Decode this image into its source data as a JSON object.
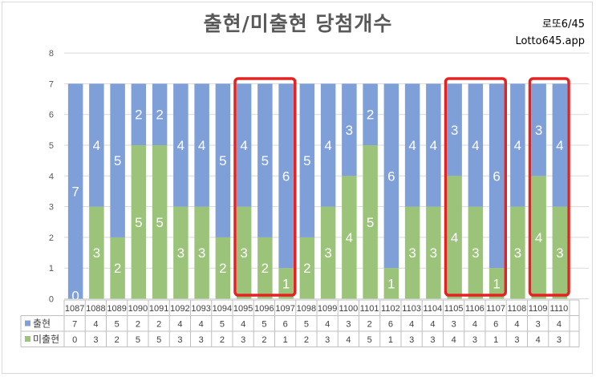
{
  "title": "출현/미출현 당첨개수",
  "brand": {
    "line1": "로또6/45",
    "line2": "Lotto645.app"
  },
  "colors": {
    "shown": "#7f9fd8",
    "missing": "#9bc47a",
    "highlight": "#e32222"
  },
  "chart_data": {
    "type": "bar",
    "stacked": true,
    "ylim": [
      0,
      8
    ],
    "yticks": [
      0,
      1,
      2,
      3,
      4,
      5,
      6,
      7,
      8
    ],
    "categories": [
      "1087",
      "1088",
      "1089",
      "1090",
      "1091",
      "1092",
      "1093",
      "1094",
      "1095",
      "1096",
      "1097",
      "1098",
      "1099",
      "1100",
      "1101",
      "1102",
      "1103",
      "1104",
      "1105",
      "1106",
      "1107",
      "1108",
      "1109",
      "1110"
    ],
    "series": [
      {
        "name": "미출현",
        "color": "#9bc47a",
        "values": [
          0,
          3,
          2,
          5,
          5,
          3,
          3,
          2,
          3,
          2,
          1,
          2,
          3,
          4,
          5,
          1,
          3,
          3,
          4,
          3,
          1,
          3,
          4,
          3
        ]
      },
      {
        "name": "출현",
        "color": "#7f9fd8",
        "values": [
          7,
          4,
          5,
          2,
          2,
          4,
          4,
          5,
          4,
          5,
          6,
          5,
          4,
          3,
          2,
          6,
          4,
          4,
          3,
          4,
          6,
          4,
          3,
          4
        ]
      }
    ],
    "table_rows": [
      "출현",
      "미출현"
    ],
    "highlight_groups": [
      [
        "1095",
        "1097"
      ],
      [
        "1105",
        "1107"
      ],
      [
        "1109",
        "1110"
      ]
    ]
  }
}
